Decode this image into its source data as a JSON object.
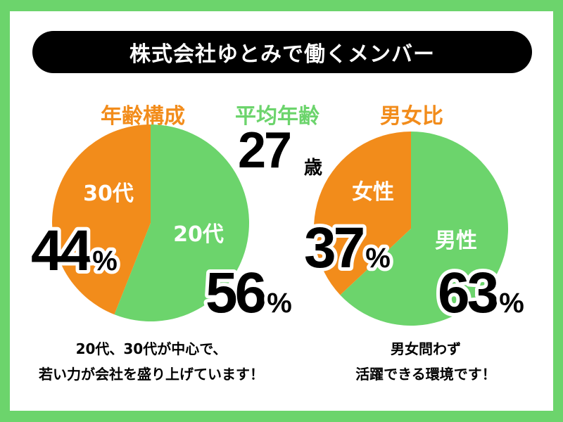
{
  "title": "株式会社ゆとみで働くメンバー",
  "colors": {
    "orange": "#f28c1b",
    "green": "#6cd46c",
    "black": "#000000"
  },
  "age_section": {
    "heading": "年齢構成",
    "caption_line1": "20代、30代が中心で、",
    "caption_line2": "若い力が会社を盛り上げています！"
  },
  "average_age": {
    "heading": "平均年齢",
    "value": "27",
    "unit": "歳"
  },
  "gender_section": {
    "heading": "男女比",
    "caption_line1": "男女問わず",
    "caption_line2": "活躍できる環境です！"
  },
  "chart_data": [
    {
      "type": "pie",
      "title": "年齢構成",
      "slices": [
        {
          "label": "20代",
          "value": 56,
          "display": "56",
          "unit": "%",
          "color": "#6cd46c"
        },
        {
          "label": "30代",
          "value": 44,
          "display": "44",
          "unit": "%",
          "color": "#f28c1b"
        }
      ]
    },
    {
      "type": "pie",
      "title": "男女比",
      "slices": [
        {
          "label": "男性",
          "value": 63,
          "display": "63",
          "unit": "%",
          "color": "#6cd46c"
        },
        {
          "label": "女性",
          "value": 37,
          "display": "37",
          "unit": "%",
          "color": "#f28c1b"
        }
      ]
    }
  ]
}
